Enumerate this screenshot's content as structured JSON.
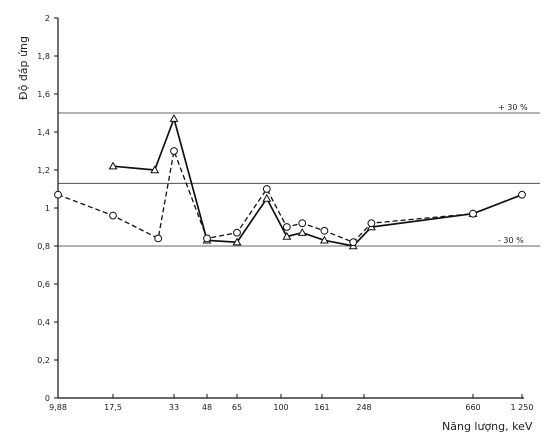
{
  "chart_data": {
    "type": "line",
    "title": "",
    "xlabel": "Năng lượng, keV",
    "ylabel": "Độ đáp ứng",
    "ylim": [
      0,
      2
    ],
    "y_ticks": [
      "0",
      "0,2",
      "0,4",
      "0,6",
      "0,8",
      "1",
      "1,2",
      "1,4",
      "1,6",
      "1,8",
      "2"
    ],
    "x_ticks": [
      "9,88",
      "17,5",
      "33",
      "48",
      "65",
      "100",
      "161",
      "248",
      "660",
      "1 250"
    ],
    "x_tick_values": [
      9.88,
      17.5,
      33,
      48,
      65,
      100,
      161,
      248,
      660,
      1250
    ],
    "grid": false,
    "reference_lines": [
      {
        "y": 1.5,
        "label": "+ 30 %"
      },
      {
        "y": 1.13,
        "label": ""
      },
      {
        "y": 0.8,
        "label": "- 30 %"
      }
    ],
    "series": [
      {
        "style": "solid",
        "marker": "triangle",
        "x": [
          17.5,
          27,
          33,
          48,
          65,
          87,
          107,
          128,
          165,
          222,
          265,
          660
        ],
        "y": [
          1.22,
          1.2,
          1.47,
          0.83,
          0.82,
          1.05,
          0.85,
          0.87,
          0.83,
          0.8,
          0.9,
          0.97
        ]
      },
      {
        "style": "solid",
        "marker": "none",
        "x": [
          660,
          1250
        ],
        "y": [
          0.97,
          1.07
        ]
      },
      {
        "style": "dashed",
        "marker": "circle",
        "x": [
          9.88,
          17.5,
          28,
          33,
          48,
          65,
          87,
          107,
          128,
          165,
          222,
          265,
          660,
          1250
        ],
        "y": [
          1.07,
          0.96,
          0.84,
          1.3,
          0.84,
          0.87,
          1.1,
          0.9,
          0.92,
          0.88,
          0.82,
          0.92,
          0.97,
          1.07
        ]
      }
    ]
  }
}
